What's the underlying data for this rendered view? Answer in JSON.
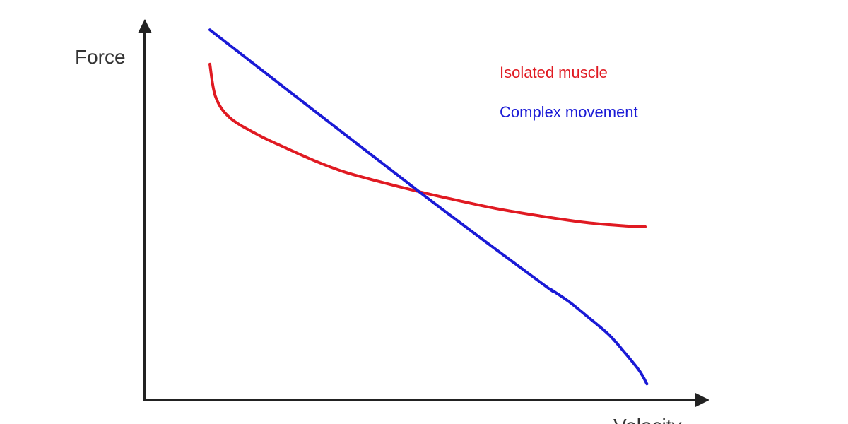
{
  "chart_data": {
    "type": "line",
    "xlabel": "Velocity",
    "ylabel": "Force",
    "xlim": [
      0,
      100
    ],
    "ylim": [
      0,
      100
    ],
    "ticks": false,
    "grid": false,
    "legend_position": "top-right",
    "series": [
      {
        "name": "Isolated muscle",
        "color": "#e01a22",
        "points": [
          [
            11.5,
            88
          ],
          [
            12.5,
            79.5
          ],
          [
            15,
            74
          ],
          [
            20,
            69.5
          ],
          [
            25,
            66
          ],
          [
            30,
            62.7
          ],
          [
            35,
            59.9
          ],
          [
            40,
            57.8
          ],
          [
            48.5,
            54.6
          ],
          [
            55,
            52.4
          ],
          [
            62,
            50.2
          ],
          [
            70,
            48.2
          ],
          [
            78,
            46.5
          ],
          [
            85,
            45.6
          ],
          [
            88.5,
            45.4
          ]
        ]
      },
      {
        "name": "Complex movement",
        "color": "#1a1ad6",
        "points": [
          [
            11.5,
            97
          ],
          [
            48.5,
            54.6
          ],
          [
            70,
            30.8
          ],
          [
            72,
            28.8
          ],
          [
            75,
            25.8
          ],
          [
            78,
            22.2
          ],
          [
            82,
            17.2
          ],
          [
            85,
            12.2
          ],
          [
            87.5,
            7.6
          ],
          [
            88.8,
            4.2
          ]
        ]
      }
    ]
  }
}
